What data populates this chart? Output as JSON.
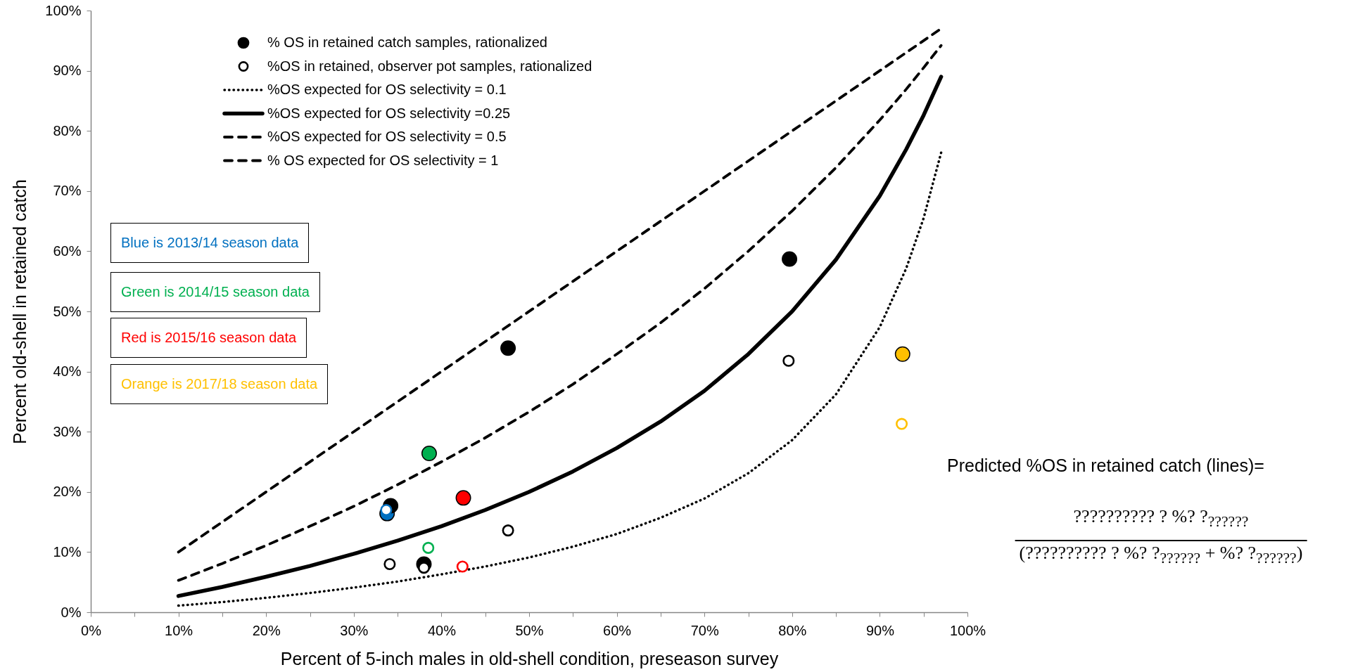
{
  "chart_data": {
    "type": "scatter",
    "xlabel": "Percent of 5-inch males in old-shell condition, preseason survey",
    "ylabel": "Percent old-shell in retained catch",
    "xlim": [
      0,
      100
    ],
    "ylim": [
      0,
      100
    ],
    "xticks": [
      {
        "value": 0,
        "label": "0%"
      },
      {
        "value": 5,
        "label": null
      },
      {
        "value": 10,
        "label": "10%"
      },
      {
        "value": 15,
        "label": null
      },
      {
        "value": 20,
        "label": "20%"
      },
      {
        "value": 25,
        "label": null
      },
      {
        "value": 30,
        "label": "30%"
      },
      {
        "value": 35,
        "label": null
      },
      {
        "value": 40,
        "label": "40%"
      },
      {
        "value": 45,
        "label": null
      },
      {
        "value": 50,
        "label": "50%"
      },
      {
        "value": 55,
        "label": null
      },
      {
        "value": 60,
        "label": "60%"
      },
      {
        "value": 65,
        "label": null
      },
      {
        "value": 70,
        "label": "70%"
      },
      {
        "value": 75,
        "label": null
      },
      {
        "value": 80,
        "label": "80%"
      },
      {
        "value": 85,
        "label": null
      },
      {
        "value": 90,
        "label": "90%"
      },
      {
        "value": 95,
        "label": null
      },
      {
        "value": 100,
        "label": "100%"
      }
    ],
    "yticks": [
      {
        "value": 0,
        "label": "0%"
      },
      {
        "value": 10,
        "label": "10%"
      },
      {
        "value": 20,
        "label": "20%"
      },
      {
        "value": 30,
        "label": "30%"
      },
      {
        "value": 40,
        "label": "40%"
      },
      {
        "value": 50,
        "label": "50%"
      },
      {
        "value": 60,
        "label": "60%"
      },
      {
        "value": 70,
        "label": "70%"
      },
      {
        "value": 80,
        "label": "80%"
      },
      {
        "value": 90,
        "label": "90%"
      },
      {
        "value": 100,
        "label": "100%"
      }
    ],
    "grid": false,
    "legend": "top",
    "series": [
      {
        "name": "% OS in retained catch samples, rationalized",
        "marker": "circle",
        "color": "#000000",
        "x": [
          33.8,
          34.2,
          38.0,
          38.6,
          42.5,
          47.6,
          79.7,
          92.6
        ],
        "values": [
          16.4,
          17.7,
          8.0,
          26.4,
          19.0,
          43.9,
          58.7,
          42.9
        ],
        "colors": [
          "#0070c0",
          "#000000",
          "#000000",
          "#00b050",
          "#ff0000",
          "#000000",
          "#000000",
          "#ffc000"
        ]
      },
      {
        "name": "%OS in retained, observer pot samples, rationalized",
        "marker": "circle",
        "x": [
          33.7,
          34.1,
          38.0,
          38.5,
          42.4,
          47.6,
          79.6,
          92.5
        ],
        "values": [
          17.0,
          8.0,
          7.4,
          10.7,
          7.6,
          13.6,
          41.8,
          31.3
        ],
        "colors": [
          "#0070c0",
          "#000000",
          "#000000",
          "#00b050",
          "#ff0000",
          "#000000",
          "#000000",
          "#ffc000"
        ]
      },
      {
        "name": "%OS expected for OS selectivity = 0.1",
        "type": "line",
        "line_style": "dotted",
        "color": "#000000",
        "x": [
          10,
          15,
          20,
          25,
          30,
          35,
          40,
          45,
          50,
          55,
          60,
          65,
          70,
          75,
          80,
          85,
          90,
          93,
          95,
          97
        ],
        "values": [
          1.1,
          1.7,
          2.4,
          3.2,
          4.1,
          5.1,
          6.3,
          7.6,
          9.1,
          10.9,
          13.0,
          15.7,
          18.9,
          23.1,
          28.6,
          36.2,
          47.4,
          57.1,
          65.5,
          76.4
        ]
      },
      {
        "name": "%OS expected for OS selectivity =0.25",
        "type": "line",
        "line_style": "solid",
        "color": "#000000",
        "x": [
          10,
          15,
          20,
          25,
          30,
          35,
          40,
          45,
          50,
          55,
          60,
          65,
          70,
          75,
          80,
          85,
          90,
          93,
          95,
          97
        ],
        "values": [
          2.7,
          4.2,
          5.9,
          7.7,
          9.7,
          11.9,
          14.3,
          17.0,
          20.0,
          23.4,
          27.3,
          31.7,
          36.8,
          42.9,
          50.0,
          58.6,
          69.2,
          76.9,
          82.6,
          89.0
        ]
      },
      {
        "name": "%OS expected for OS selectivity = 0.5",
        "type": "line",
        "line_style": "dashed",
        "color": "#000000",
        "x": [
          10,
          15,
          20,
          25,
          30,
          35,
          40,
          45,
          50,
          55,
          60,
          65,
          70,
          75,
          80,
          85,
          90,
          93,
          95,
          97
        ],
        "values": [
          5.3,
          8.1,
          11.1,
          14.3,
          17.6,
          21.2,
          25.0,
          29.0,
          33.3,
          37.9,
          42.9,
          48.1,
          53.8,
          60.0,
          66.7,
          73.9,
          81.8,
          86.9,
          90.5,
          94.2
        ]
      },
      {
        "name": "% OS expected for OS selectivity = 1",
        "type": "line",
        "line_style": "dashed",
        "color": "#000000",
        "x": [
          10,
          97
        ],
        "values": [
          10,
          97
        ]
      }
    ],
    "annotations": [
      "Blue is 2013/14 season data",
      "Green is 2014/15 season data",
      "Red is 2015/16 season data",
      "Orange is 2017/18 season data",
      "Predicted %OS in retained catch (lines)=",
      "?????????? ? %? ?$_{??????}$",
      "(?????????? ? %? ?$_{??????}$ + %? ?$_{??????}$)"
    ]
  }
}
